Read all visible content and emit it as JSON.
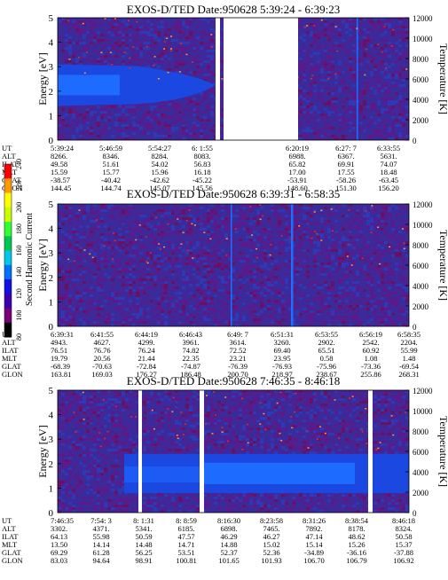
{
  "chart_data": [
    {
      "type": "heatmap",
      "title": "EXOS-D/TED   Date:950628   5:39:24 - 6:39:23",
      "ylabel": "Energy [eV]",
      "ylabel_right": "Temperature [K]",
      "ylim": [
        0,
        5
      ],
      "yticks": [
        "0",
        "1",
        "2",
        "3",
        "4",
        "5"
      ],
      "ylim_right": [
        0,
        12000
      ],
      "yticks_right": [
        "0",
        "2000",
        "4000",
        "6000",
        "8000",
        "10000",
        "12000"
      ],
      "ephemeris_labels": [
        "UT",
        "ALT",
        "ILAT",
        "MLT",
        "GLAT",
        "GLON"
      ],
      "ephemeris": [
        [
          "5:39:24",
          "5:46:59",
          "5:54:27",
          "6: 1:55",
          "6:20:19",
          "6:27: 7",
          "6:33:55"
        ],
        [
          "8266.",
          "8346.",
          "8284.",
          "8083.",
          "6988.",
          "6367.",
          "5631."
        ],
        [
          "49.58",
          "51.61",
          "54.02",
          "56.83",
          "65.82",
          "69.91",
          "74.07"
        ],
        [
          "15.59",
          "15.77",
          "15.96",
          "16.18",
          "17.00",
          "17.55",
          "18.48"
        ],
        [
          "-38.57",
          "-40.42",
          "-42.62",
          "-45.22",
          "-53.91",
          "-58.26",
          "-63.45"
        ],
        [
          "144.45",
          "144.74",
          "145.07",
          "145.56",
          "148.60",
          "151.30",
          "156.20"
        ]
      ]
    },
    {
      "type": "heatmap",
      "title": "EXOS-D/TED   Date:950628   6:39:31 - 6:58:35",
      "ylabel": "Energy [eV]",
      "ylabel_right": "Temperature [K]",
      "ylim": [
        0,
        5
      ],
      "yticks": [
        "0",
        "1",
        "2",
        "3",
        "4",
        "5"
      ],
      "ylim_right": [
        0,
        12000
      ],
      "yticks_right": [
        "0",
        "2000",
        "4000",
        "6000",
        "8000",
        "10000",
        "12000"
      ],
      "ephemeris_labels": [
        "UT",
        "ALT",
        "ILAT",
        "MLT",
        "GLAT",
        "GLON"
      ],
      "ephemeris": [
        [
          "6:39:31",
          "6:41:55",
          "6:44:19",
          "6:46:43",
          "6:49: 7",
          "6:51:31",
          "6:53:55",
          "6:56:19",
          "6:58:35"
        ],
        [
          "4943.",
          "4627.",
          "4299.",
          "3961.",
          "3614.",
          "3260.",
          "2902.",
          "2542.",
          "2204."
        ],
        [
          "76.51",
          "76.76",
          "76.24",
          "74.82",
          "72.52",
          "69.40",
          "65.51",
          "60.92",
          "55.99"
        ],
        [
          "19.79",
          "20.56",
          "21.44",
          "22.35",
          "23.21",
          "23.95",
          "0.58",
          "1.08",
          "1.48"
        ],
        [
          "-68.39",
          "-70.63",
          "-72.84",
          "-74.87",
          "-76.39",
          "-76.93",
          "-75.96",
          "-73.36",
          "-69.54"
        ],
        [
          "163.81",
          "169.03",
          "176.27",
          "186.48",
          "200.70",
          "218.97",
          "238.67",
          "255.86",
          "268.31"
        ]
      ]
    },
    {
      "type": "heatmap",
      "title": "EXOS-D/TED   Date:950628   7:46:35 - 8:46:18",
      "ylabel": "Energy [eV]",
      "ylabel_right": "Temperature [K]",
      "ylim": [
        0,
        5
      ],
      "yticks": [
        "0",
        "1",
        "2",
        "3",
        "4",
        "5"
      ],
      "ylim_right": [
        0,
        12000
      ],
      "yticks_right": [
        "0",
        "2000",
        "4000",
        "6000",
        "8000",
        "10000",
        "12000"
      ],
      "ephemeris_labels": [
        "UT",
        "ALT",
        "ILAT",
        "MLT",
        "GLAT",
        "GLON"
      ],
      "ephemeris": [
        [
          "7:46:35",
          "7:54: 3",
          "8: 1:31",
          "8: 8:59",
          "8:16:30",
          "8:23:58",
          "8:31:26",
          "8:38:54",
          "8:46:18"
        ],
        [
          "3302.",
          "4371.",
          "5341.",
          "6185.",
          "6898.",
          "7465.",
          "7892.",
          "8178.",
          "8324."
        ],
        [
          "64.13",
          "55.98",
          "50.59",
          "47.57",
          "46.29",
          "46.27",
          "47.14",
          "48.62",
          "50.58"
        ],
        [
          "13.50",
          "14.14",
          "14.48",
          "14.71",
          "14.88",
          "15.02",
          "15.14",
          "15.26",
          "15.37"
        ],
        [
          "69.29",
          "61.28",
          "56.25",
          "53.51",
          "52.37",
          "52.36",
          "-34.89",
          "-36.16",
          "-37.88"
        ],
        [
          "83.03",
          "94.64",
          "98.91",
          "100.81",
          "101.65",
          "101.93",
          "106.70",
          "106.79",
          "106.92"
        ]
      ]
    }
  ],
  "colorbar": {
    "label": "Second Harmonic Current",
    "ticks": [
      "80",
      "100",
      "120",
      "140",
      "160",
      "180",
      "200",
      "220",
      "240"
    ],
    "colors": [
      "#000000",
      "#7a007a",
      "#3b00b0",
      "#1010e8",
      "#0070ff",
      "#00c8e8",
      "#00c850",
      "#30ff30",
      "#c8ff00",
      "#ffff00",
      "#ff9900",
      "#ff0000"
    ]
  }
}
